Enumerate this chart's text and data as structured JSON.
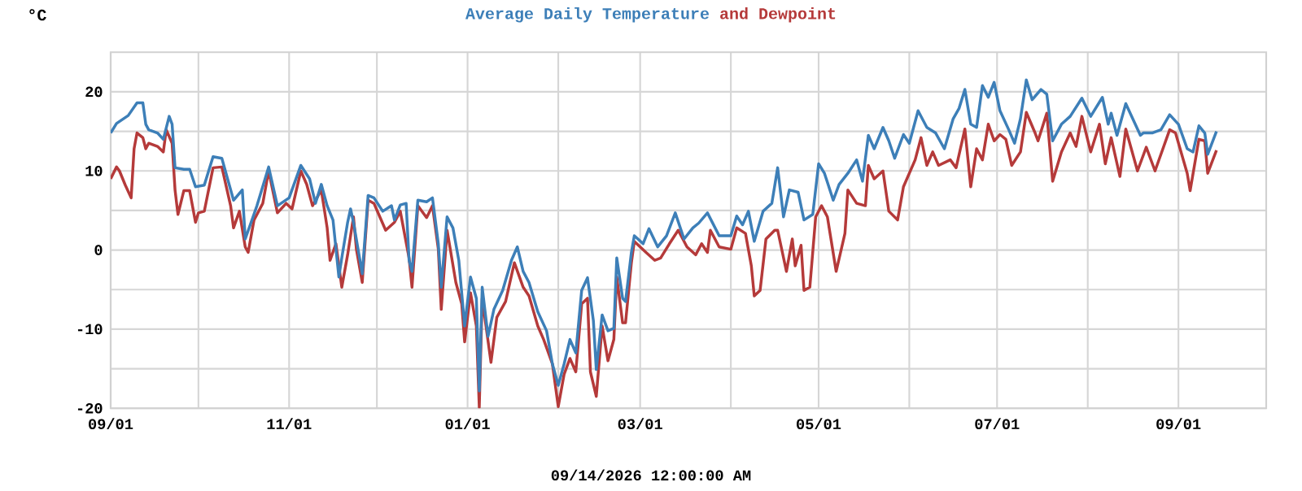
{
  "chart_data": {
    "type": "line",
    "ylabel": "°C",
    "annotations": [
      "09/14/2026 12:00:00 AM"
    ],
    "xlim": [
      "2025-09-01",
      "2026-10-01"
    ],
    "xticks": [
      {
        "value": "2025-09-01",
        "label": "09/01"
      },
      {
        "value": "2025-10-01",
        "label": null
      },
      {
        "value": "2025-11-01",
        "label": "11/01"
      },
      {
        "value": "2025-12-01",
        "label": null
      },
      {
        "value": "2026-01-01",
        "label": "01/01"
      },
      {
        "value": "2026-02-01",
        "label": null
      },
      {
        "value": "2026-03-01",
        "label": "03/01"
      },
      {
        "value": "2026-04-01",
        "label": null
      },
      {
        "value": "2026-05-01",
        "label": "05/01"
      },
      {
        "value": "2026-06-01",
        "label": null
      },
      {
        "value": "2026-07-01",
        "label": "07/01"
      },
      {
        "value": "2026-08-01",
        "label": null
      },
      {
        "value": "2026-09-01",
        "label": "09/01"
      }
    ],
    "ylim": [
      -20,
      25
    ],
    "yticks": [
      -20,
      {
        "value": -15,
        "label": null
      },
      -10,
      {
        "value": -5,
        "label": null
      },
      0,
      {
        "value": 5,
        "label": null
      },
      10,
      {
        "value": 15,
        "label": null
      },
      20
    ],
    "grid": true,
    "series": [
      {
        "name": "Average Daily Temperature",
        "color": "#3d7fb8",
        "x": [
          "2025-09-01",
          "2025-09-03",
          "2025-09-07",
          "2025-09-10",
          "2025-09-12",
          "2025-09-13",
          "2025-09-14",
          "2025-09-17",
          "2025-09-19",
          "2025-09-21",
          "2025-09-22",
          "2025-09-23",
          "2025-09-26",
          "2025-09-28",
          "2025-09-30",
          "2025-10-03",
          "2025-10-06",
          "2025-10-09",
          "2025-10-13",
          "2025-10-16",
          "2025-10-17",
          "2025-10-21",
          "2025-10-25",
          "2025-10-28",
          "2025-11-01",
          "2025-11-05",
          "2025-11-08",
          "2025-11-10",
          "2025-11-12",
          "2025-11-14",
          "2025-11-16",
          "2025-11-18",
          "2025-11-19",
          "2025-11-21",
          "2025-11-22",
          "2025-11-23",
          "2025-11-26",
          "2025-11-28",
          "2025-11-30",
          "2025-12-03",
          "2025-12-06",
          "2025-12-07",
          "2025-12-09",
          "2025-12-11",
          "2025-12-12",
          "2025-12-13",
          "2025-12-15",
          "2025-12-18",
          "2025-12-20",
          "2025-12-22",
          "2025-12-23",
          "2025-12-25",
          "2025-12-27",
          "2025-12-29",
          "2025-12-31",
          "2026-01-02",
          "2026-01-04",
          "2026-01-05",
          "2026-01-06",
          "2026-01-08",
          "2026-01-10",
          "2026-01-13",
          "2026-01-16",
          "2026-01-18",
          "2026-01-20",
          "2026-01-22",
          "2026-01-25",
          "2026-01-28",
          "2026-01-30",
          "2026-02-01",
          "2026-02-03",
          "2026-02-05",
          "2026-02-07",
          "2026-02-09",
          "2026-02-11",
          "2026-02-13",
          "2026-02-14",
          "2026-02-16",
          "2026-02-18",
          "2026-02-20",
          "2026-02-21",
          "2026-02-23",
          "2026-02-24",
          "2026-02-26",
          "2026-02-27",
          "2026-03-02",
          "2026-03-04",
          "2026-03-07",
          "2026-03-10",
          "2026-03-13",
          "2026-03-16",
          "2026-03-19",
          "2026-03-21",
          "2026-03-24",
          "2026-03-28",
          "2026-04-01",
          "2026-04-03",
          "2026-04-05",
          "2026-04-07",
          "2026-04-09",
          "2026-04-12",
          "2026-04-15",
          "2026-04-17",
          "2026-04-19",
          "2026-04-21",
          "2026-04-24",
          "2026-04-26",
          "2026-04-29",
          "2026-05-01",
          "2026-05-03",
          "2026-05-06",
          "2026-05-08",
          "2026-05-11",
          "2026-05-14",
          "2026-05-16",
          "2026-05-18",
          "2026-05-20",
          "2026-05-23",
          "2026-05-25",
          "2026-05-27",
          "2026-05-30",
          "2026-06-01",
          "2026-06-04",
          "2026-06-07",
          "2026-06-10",
          "2026-06-13",
          "2026-06-16",
          "2026-06-18",
          "2026-06-20",
          "2026-06-22",
          "2026-06-24",
          "2026-06-26",
          "2026-06-28",
          "2026-06-30",
          "2026-07-02",
          "2026-07-05",
          "2026-07-07",
          "2026-07-09",
          "2026-07-11",
          "2026-07-13",
          "2026-07-16",
          "2026-07-18",
          "2026-07-20",
          "2026-07-23",
          "2026-07-26",
          "2026-07-30",
          "2026-08-02",
          "2026-08-06",
          "2026-08-08",
          "2026-08-09",
          "2026-08-11",
          "2026-08-14",
          "2026-08-19",
          "2026-08-20",
          "2026-08-23",
          "2026-08-26",
          "2026-08-29",
          "2026-09-01",
          "2026-09-04",
          "2026-09-06",
          "2026-09-08",
          "2026-09-10",
          "2026-09-11",
          "2026-09-14"
        ],
        "values": [
          14.8,
          16.0,
          17.0,
          18.6,
          18.6,
          15.9,
          15.2,
          14.8,
          14.0,
          16.9,
          15.9,
          10.4,
          10.2,
          10.2,
          8.0,
          8.2,
          11.8,
          11.6,
          6.3,
          7.6,
          1.4,
          5.6,
          10.5,
          5.6,
          6.6,
          10.7,
          9.0,
          5.9,
          8.3,
          5.6,
          3.8,
          -3.4,
          -1.0,
          3.5,
          5.2,
          3.5,
          -3.0,
          6.9,
          6.6,
          4.9,
          5.6,
          3.8,
          5.7,
          5.9,
          -1.3,
          -2.7,
          6.3,
          6.1,
          6.6,
          0.8,
          -4.7,
          4.2,
          2.8,
          -1.3,
          -9.6,
          -3.4,
          -6.1,
          -17.8,
          -4.7,
          -10.9,
          -7.5,
          -5.1,
          -1.3,
          0.4,
          -2.7,
          -4.1,
          -7.8,
          -10.2,
          -14.4,
          -17.1,
          -14.4,
          -11.3,
          -13.0,
          -5.1,
          -3.5,
          -8.9,
          -15.1,
          -8.2,
          -10.2,
          -9.9,
          -1.0,
          -6.1,
          -6.5,
          -0.3,
          1.8,
          0.8,
          2.7,
          0.4,
          1.8,
          4.7,
          1.4,
          2.8,
          3.4,
          4.7,
          1.8,
          1.8,
          4.3,
          3.2,
          4.9,
          1.1,
          4.9,
          5.9,
          10.4,
          4.2,
          7.6,
          7.3,
          3.8,
          4.5,
          10.9,
          9.7,
          6.3,
          8.3,
          9.7,
          11.4,
          8.7,
          14.5,
          12.8,
          15.5,
          13.8,
          11.6,
          14.6,
          13.5,
          17.6,
          15.5,
          14.8,
          12.8,
          16.6,
          17.9,
          20.3,
          15.9,
          15.5,
          20.8,
          19.3,
          21.2,
          17.6,
          15.2,
          13.5,
          16.6,
          21.5,
          19.0,
          20.3,
          19.7,
          13.8,
          15.9,
          16.9,
          19.2,
          16.9,
          19.3,
          15.9,
          17.3,
          14.5,
          18.5,
          14.5,
          14.8,
          14.8,
          15.2,
          17.1,
          15.9,
          12.8,
          12.4,
          15.7,
          14.8,
          12.1,
          15.0
        ]
      },
      {
        "name": "and Dewpoint",
        "color": "#b53a3a",
        "x": [
          "2025-09-01",
          "2025-09-03",
          "2025-09-04",
          "2025-09-06",
          "2025-09-08",
          "2025-09-09",
          "2025-09-10",
          "2025-09-12",
          "2025-09-13",
          "2025-09-14",
          "2025-09-17",
          "2025-09-19",
          "2025-09-20",
          "2025-09-22",
          "2025-09-23",
          "2025-09-24",
          "2025-09-26",
          "2025-09-28",
          "2025-09-30",
          "2025-10-01",
          "2025-10-03",
          "2025-10-06",
          "2025-10-09",
          "2025-10-12",
          "2025-10-13",
          "2025-10-15",
          "2025-10-17",
          "2025-10-18",
          "2025-10-20",
          "2025-10-23",
          "2025-10-25",
          "2025-10-28",
          "2025-10-31",
          "2025-11-02",
          "2025-11-05",
          "2025-11-07",
          "2025-11-09",
          "2025-11-12",
          "2025-11-14",
          "2025-11-15",
          "2025-11-17",
          "2025-11-19",
          "2025-11-21",
          "2025-11-23",
          "2025-11-24",
          "2025-11-26",
          "2025-11-28",
          "2025-11-30",
          "2025-12-04",
          "2025-12-07",
          "2025-12-09",
          "2025-12-12",
          "2025-12-13",
          "2025-12-15",
          "2025-12-18",
          "2025-12-20",
          "2025-12-22",
          "2025-12-23",
          "2025-12-25",
          "2025-12-28",
          "2025-12-30",
          "2025-12-31",
          "2026-01-02",
          "2026-01-04",
          "2026-01-05",
          "2026-01-06",
          "2026-01-09",
          "2026-01-11",
          "2026-01-14",
          "2026-01-17",
          "2026-01-20",
          "2026-01-22",
          "2026-01-25",
          "2026-01-27",
          "2026-01-30",
          "2026-02-01",
          "2026-02-03",
          "2026-02-05",
          "2026-02-07",
          "2026-02-09",
          "2026-02-11",
          "2026-02-12",
          "2026-02-14",
          "2026-02-16",
          "2026-02-18",
          "2026-02-20",
          "2026-02-21",
          "2026-02-23",
          "2026-02-24",
          "2026-02-26",
          "2026-02-27",
          "2026-03-03",
          "2026-03-06",
          "2026-03-08",
          "2026-03-11",
          "2026-03-14",
          "2026-03-17",
          "2026-03-20",
          "2026-03-22",
          "2026-03-24",
          "2026-03-25",
          "2026-03-28",
          "2026-04-01",
          "2026-04-03",
          "2026-04-06",
          "2026-04-08",
          "2026-04-09",
          "2026-04-11",
          "2026-04-13",
          "2026-04-16",
          "2026-04-17",
          "2026-04-20",
          "2026-04-22",
          "2026-04-23",
          "2026-04-25",
          "2026-04-26",
          "2026-04-28",
          "2026-04-30",
          "2026-05-02",
          "2026-05-04",
          "2026-05-07",
          "2026-05-10",
          "2026-05-11",
          "2026-05-14",
          "2026-05-17",
          "2026-05-18",
          "2026-05-20",
          "2026-05-23",
          "2026-05-25",
          "2026-05-28",
          "2026-05-30",
          "2026-06-03",
          "2026-06-05",
          "2026-06-07",
          "2026-06-09",
          "2026-06-11",
          "2026-06-15",
          "2026-06-17",
          "2026-06-20",
          "2026-06-22",
          "2026-06-24",
          "2026-06-26",
          "2026-06-28",
          "2026-06-30",
          "2026-07-02",
          "2026-07-04",
          "2026-07-06",
          "2026-07-09",
          "2026-07-11",
          "2026-07-14",
          "2026-07-15",
          "2026-07-18",
          "2026-07-20",
          "2026-07-23",
          "2026-07-26",
          "2026-07-28",
          "2026-07-30",
          "2026-08-02",
          "2026-08-05",
          "2026-08-07",
          "2026-08-09",
          "2026-08-12",
          "2026-08-14",
          "2026-08-18",
          "2026-08-21",
          "2026-08-24",
          "2026-08-29",
          "2026-08-31",
          "2026-09-04",
          "2026-09-05",
          "2026-09-08",
          "2026-09-10",
          "2026-09-11",
          "2026-09-14"
        ],
        "values": [
          9.0,
          10.5,
          10.0,
          8.2,
          6.6,
          12.8,
          14.8,
          14.2,
          12.8,
          13.5,
          13.1,
          12.4,
          15.2,
          13.5,
          7.6,
          4.5,
          7.5,
          7.5,
          3.5,
          4.7,
          4.9,
          10.4,
          10.5,
          5.6,
          2.8,
          4.9,
          0.4,
          -0.3,
          3.8,
          5.9,
          10.0,
          4.7,
          5.9,
          5.2,
          10.0,
          8.3,
          5.6,
          7.6,
          2.8,
          -1.3,
          0.8,
          -4.7,
          -0.6,
          4.2,
          0.1,
          -4.1,
          6.3,
          5.9,
          2.5,
          3.5,
          4.9,
          -1.0,
          -4.7,
          5.6,
          4.1,
          5.6,
          0.1,
          -7.5,
          2.5,
          -4.1,
          -6.8,
          -11.6,
          -5.4,
          -9.6,
          -19.9,
          -6.1,
          -14.2,
          -8.5,
          -6.5,
          -1.6,
          -4.7,
          -5.8,
          -9.6,
          -11.3,
          -14.4,
          -19.8,
          -15.7,
          -13.7,
          -15.4,
          -6.8,
          -6.1,
          -15.4,
          -18.5,
          -9.6,
          -14.0,
          -11.3,
          -3.4,
          -9.2,
          -9.2,
          -1.6,
          1.1,
          -0.3,
          -1.3,
          -1.0,
          0.8,
          2.5,
          0.4,
          -0.6,
          0.8,
          -0.3,
          2.5,
          0.4,
          0.1,
          2.8,
          2.1,
          -2.0,
          -5.8,
          -5.1,
          1.4,
          2.5,
          2.5,
          -2.7,
          1.4,
          -2.0,
          0.6,
          -5.1,
          -4.7,
          4.2,
          5.6,
          4.2,
          -2.7,
          2.1,
          7.6,
          5.9,
          5.6,
          10.7,
          9.0,
          10.0,
          4.9,
          3.8,
          8.0,
          11.4,
          14.2,
          10.7,
          12.4,
          10.7,
          11.4,
          10.4,
          15.3,
          8.0,
          12.8,
          11.4,
          15.9,
          13.8,
          14.6,
          14.0,
          10.7,
          12.4,
          17.4,
          14.8,
          13.8,
          17.3,
          8.7,
          12.4,
          14.8,
          13.1,
          16.9,
          12.4,
          15.9,
          10.9,
          14.2,
          9.3,
          15.3,
          10.0,
          13.0,
          10.0,
          15.2,
          14.8,
          9.7,
          7.5,
          14.0,
          13.8,
          9.7,
          12.6
        ]
      }
    ]
  }
}
